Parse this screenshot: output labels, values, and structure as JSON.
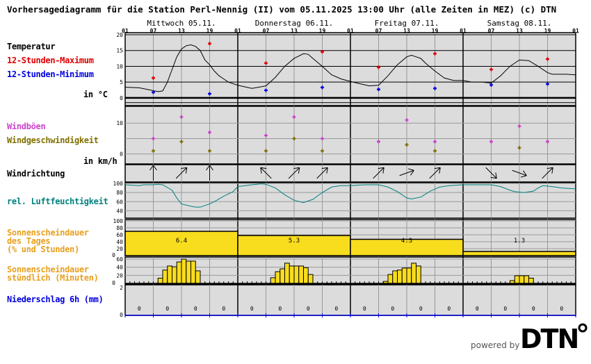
{
  "title": "Vorhersagediagramm für die Station Perl-Nennig (II) vom 05.11.2025 13:00 Uhr (alle Zeiten in MEZ)   (c) DTN",
  "labels": {
    "temp": "Temperatur",
    "tmax": "12-Stunden-Maximum",
    "tmin": "12-Stunden-Minimum",
    "temp_unit": "in °C",
    "gust": "Windböen",
    "wind": "Windgeschwindigkeit",
    "wind_unit": "in km/h",
    "winddir": "Windrichtung",
    "rh": "rel. Luftfeuchtigkeit",
    "sun_day": "Sonnenscheindauer\ndes Tages\n(% und Stunden)",
    "sun_hour": "Sonnenscheindauer\nstündlich (Minuten)",
    "precip": "Niederschlag 6h (mm)"
  },
  "colors": {
    "tmax": "#e00000",
    "tmin": "#0000e0",
    "gust": "#cc44cc",
    "wind": "#807000",
    "rh": "#008080",
    "sun": "#f8dc1e",
    "sun_label": "#e8a020",
    "panel": "#dcdcdc",
    "precip": "#0000e0"
  },
  "logo": {
    "powered": "powered by",
    "brand": "DTN"
  },
  "chart_data": {
    "type": "line",
    "days": [
      "Mittwoch 05.11.",
      "Donnerstag 06.11.",
      "Freitag 07.11.",
      "Samstag 08.11."
    ],
    "hour_ticks": [
      "01",
      "07",
      "13",
      "19",
      "01",
      "07",
      "13",
      "19",
      "01",
      "07",
      "13",
      "19",
      "01",
      "07",
      "13",
      "19",
      "01"
    ],
    "temperature": {
      "ylim": [
        -2,
        20
      ],
      "yticks": [
        0,
        5,
        10,
        15,
        20
      ],
      "curve": [
        [
          0,
          3.4
        ],
        [
          3,
          3.2
        ],
        [
          6,
          2.3
        ],
        [
          7,
          2.0
        ],
        [
          8,
          2.2
        ],
        [
          9,
          5
        ],
        [
          10,
          9
        ],
        [
          11,
          13
        ],
        [
          12,
          15.5
        ],
        [
          13,
          16.5
        ],
        [
          14,
          16.8
        ],
        [
          15,
          16.3
        ],
        [
          16,
          15
        ],
        [
          17,
          12
        ],
        [
          18,
          10.5
        ],
        [
          19,
          8.5
        ],
        [
          20,
          7
        ],
        [
          21,
          6
        ],
        [
          22,
          5
        ],
        [
          24,
          4
        ],
        [
          27,
          3
        ],
        [
          30,
          3.8
        ],
        [
          32,
          6.5
        ],
        [
          34,
          10
        ],
        [
          36,
          12.5
        ],
        [
          38,
          14
        ],
        [
          39,
          13.8
        ],
        [
          40,
          12.5
        ],
        [
          42,
          10
        ],
        [
          44,
          7.3
        ],
        [
          46,
          6
        ],
        [
          48,
          5.2
        ],
        [
          50,
          4.5
        ],
        [
          52,
          3.8
        ],
        [
          54,
          4
        ],
        [
          56,
          7
        ],
        [
          58,
          10.5
        ],
        [
          60,
          13
        ],
        [
          61,
          13.5
        ],
        [
          62,
          13
        ],
        [
          63,
          12.5
        ],
        [
          64,
          11
        ],
        [
          66,
          8.5
        ],
        [
          68,
          6.3
        ],
        [
          70,
          5.5
        ],
        [
          72,
          5.5
        ],
        [
          74,
          5
        ],
        [
          76,
          5
        ],
        [
          78,
          4.7
        ],
        [
          80,
          7
        ],
        [
          82,
          10
        ],
        [
          84,
          12
        ],
        [
          86,
          11.8
        ],
        [
          88,
          10
        ],
        [
          90,
          8
        ],
        [
          91,
          7.5
        ],
        [
          94,
          7.5
        ],
        [
          96,
          7.3
        ]
      ],
      "max_12h": [
        [
          6,
          6.3
        ],
        [
          18,
          17.2
        ],
        [
          30,
          11
        ],
        [
          42,
          14.6
        ],
        [
          54,
          9.7
        ],
        [
          66,
          14
        ],
        [
          78,
          9
        ],
        [
          90,
          12.3
        ]
      ],
      "min_12h": [
        [
          6,
          1.8
        ],
        [
          18,
          1.3
        ],
        [
          30,
          2.4
        ],
        [
          42,
          3.3
        ],
        [
          54,
          2.7
        ],
        [
          66,
          3.0
        ],
        [
          78,
          4.1
        ],
        [
          90,
          4.4
        ]
      ]
    },
    "wind": {
      "ylim": [
        -3,
        15
      ],
      "yticks": [
        0,
        10
      ],
      "hours": [
        6,
        12,
        18,
        30,
        36,
        42,
        54,
        60,
        66,
        78,
        84,
        90
      ],
      "gusts": [
        5,
        12,
        7,
        6,
        12,
        5,
        4,
        11,
        4,
        4,
        9,
        4
      ],
      "speed": [
        1,
        4,
        1,
        1,
        5,
        1,
        4,
        3,
        1,
        4,
        2,
        4
      ],
      "direction_deg": [
        0,
        45,
        0,
        315,
        45,
        45,
        45,
        70,
        45,
        135,
        110,
        45
      ]
    },
    "humidity": {
      "ylim": [
        30,
        100
      ],
      "yticks": [
        40,
        60,
        80,
        100
      ],
      "curve": [
        [
          0,
          97
        ],
        [
          3,
          95
        ],
        [
          4,
          97
        ],
        [
          6,
          97
        ],
        [
          7,
          98
        ],
        [
          8,
          97
        ],
        [
          10,
          85
        ],
        [
          11,
          68
        ],
        [
          12,
          55
        ],
        [
          14,
          50
        ],
        [
          15,
          48
        ],
        [
          16,
          48
        ],
        [
          18,
          55
        ],
        [
          19,
          60
        ],
        [
          21,
          72
        ],
        [
          23,
          82
        ],
        [
          24,
          93
        ],
        [
          27,
          97
        ],
        [
          29,
          99
        ],
        [
          30,
          98
        ],
        [
          32,
          90
        ],
        [
          34,
          75
        ],
        [
          36,
          63
        ],
        [
          38,
          58
        ],
        [
          40,
          65
        ],
        [
          42,
          80
        ],
        [
          44,
          92
        ],
        [
          46,
          95
        ],
        [
          48,
          95
        ],
        [
          51,
          97
        ],
        [
          54,
          97
        ],
        [
          56,
          92
        ],
        [
          58,
          82
        ],
        [
          60,
          68
        ],
        [
          61,
          66
        ],
        [
          63,
          70
        ],
        [
          65,
          83
        ],
        [
          67,
          92
        ],
        [
          69,
          95
        ],
        [
          72,
          97
        ],
        [
          78,
          97
        ],
        [
          80,
          93
        ],
        [
          82,
          85
        ],
        [
          83,
          82
        ],
        [
          85,
          80
        ],
        [
          87,
          83
        ],
        [
          88,
          90
        ],
        [
          89,
          95
        ],
        [
          91,
          93
        ],
        [
          93,
          90
        ],
        [
          96,
          88
        ]
      ]
    },
    "sunshine_daily": {
      "ylim": [
        0,
        100
      ],
      "yticks": [
        0,
        20,
        40,
        60,
        80,
        100
      ],
      "percent": [
        70,
        58,
        47,
        12
      ],
      "hours": [
        "6.4",
        "5.3",
        "4.3",
        "1.3"
      ]
    },
    "sunshine_hourly": {
      "ylim": [
        0,
        60
      ],
      "yticks": [
        0,
        20,
        40,
        60
      ],
      "bars": [
        [
          7,
          13
        ],
        [
          8,
          33
        ],
        [
          9,
          43
        ],
        [
          10,
          41
        ],
        [
          11,
          53
        ],
        [
          12,
          60
        ],
        [
          13,
          55
        ],
        [
          14,
          55
        ],
        [
          15,
          31
        ],
        [
          31,
          14
        ],
        [
          32,
          29
        ],
        [
          33,
          36
        ],
        [
          34,
          50
        ],
        [
          35,
          43
        ],
        [
          36,
          43
        ],
        [
          37,
          43
        ],
        [
          38,
          39
        ],
        [
          39,
          22
        ],
        [
          55,
          5
        ],
        [
          56,
          22
        ],
        [
          57,
          31
        ],
        [
          58,
          33
        ],
        [
          59,
          38
        ],
        [
          60,
          38
        ],
        [
          61,
          50
        ],
        [
          62,
          43
        ],
        [
          82,
          7
        ],
        [
          83,
          19
        ],
        [
          84,
          19
        ],
        [
          85,
          19
        ],
        [
          86,
          13
        ]
      ]
    },
    "precip_6h": {
      "ylim": [
        0,
        2
      ],
      "yticks": [
        0,
        2
      ],
      "values": [
        "0",
        "0",
        "0",
        "0",
        "0",
        "0",
        "0",
        "0",
        "0",
        "0",
        "0",
        "0",
        "0",
        "0",
        "0",
        "0"
      ]
    }
  }
}
